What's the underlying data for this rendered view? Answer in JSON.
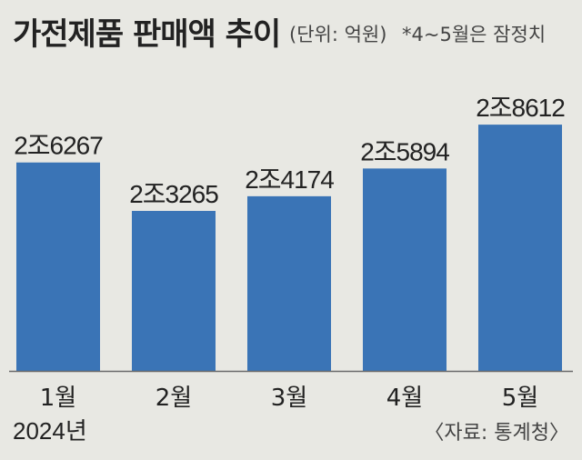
{
  "header": {
    "title": "가전제품 판매액 추이",
    "unit": "(단위: 억원)",
    "note": "*4~5월은 잠정치"
  },
  "footer": {
    "year": "2024년",
    "source": "〈자료: 통계청〉"
  },
  "colors": {
    "bar": "#3a74b6",
    "background": "#e8e8e3",
    "baseline": "#6b6b6b"
  },
  "chart_data": {
    "type": "bar",
    "title": "가전제품 판매액 추이",
    "categories": [
      "1월",
      "2월",
      "3월",
      "4월",
      "5월"
    ],
    "values": [
      26267,
      23265,
      24174,
      25894,
      28612
    ],
    "value_labels": [
      "2조6267",
      "2조3265",
      "2조4174",
      "2조5894",
      "2조8612"
    ],
    "ylim": [
      13350,
      29350
    ],
    "grid": false,
    "legend": "none"
  }
}
